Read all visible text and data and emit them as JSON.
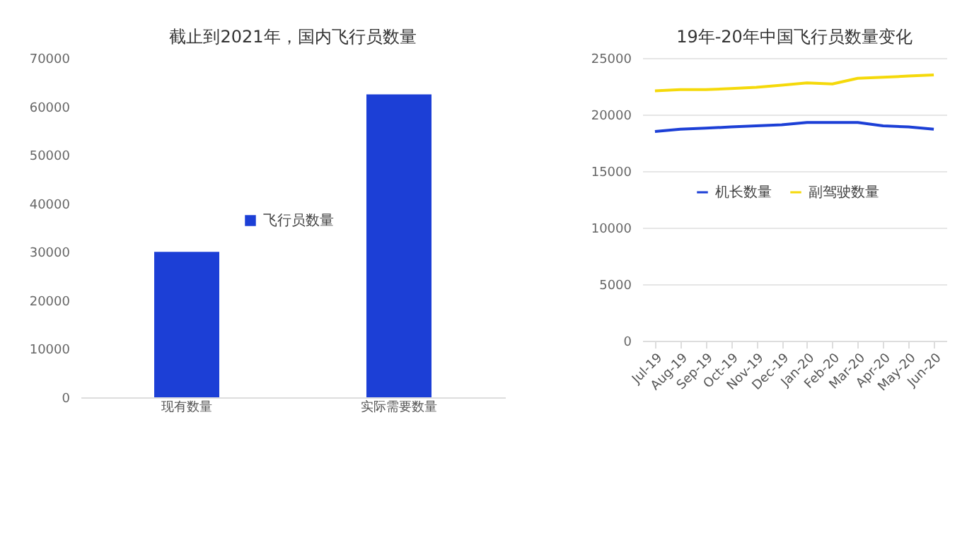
{
  "chart_data": [
    {
      "type": "bar",
      "title": "截止到2021年，国内飞行员数量",
      "categories": [
        "现有数量",
        "实际需要数量"
      ],
      "series": [
        {
          "name": "飞行员数量",
          "color": "#1c3fd6",
          "values": [
            30000,
            62500
          ]
        }
      ],
      "ylim": [
        0,
        70000
      ],
      "yticks": [
        0,
        10000,
        20000,
        30000,
        40000,
        50000,
        60000,
        70000
      ],
      "grid": false,
      "legend": "center"
    },
    {
      "type": "line",
      "title": "19年-20年中国飞行员数量变化",
      "categories": [
        "Jul-19",
        "Aug-19",
        "Sep-19",
        "Oct-19",
        "Nov-19",
        "Dec-19",
        "Jan-20",
        "Feb-20",
        "Mar-20",
        "Apr-20",
        "May-20",
        "Jun-20"
      ],
      "series": [
        {
          "name": "机长数量",
          "color": "#1c3fd6",
          "values": [
            18500,
            18700,
            18800,
            18900,
            19000,
            19100,
            19300,
            19300,
            19300,
            19000,
            18900,
            18700
          ]
        },
        {
          "name": "副驾驶数量",
          "color": "#f5d90a",
          "values": [
            22100,
            22200,
            22200,
            22300,
            22400,
            22600,
            22800,
            22700,
            23200,
            23300,
            23400,
            23500
          ]
        }
      ],
      "ylim": [
        0,
        25000
      ],
      "yticks": [
        0,
        5000,
        10000,
        15000,
        20000,
        25000
      ],
      "grid": "y",
      "legend": "center",
      "marker": "none"
    }
  ]
}
